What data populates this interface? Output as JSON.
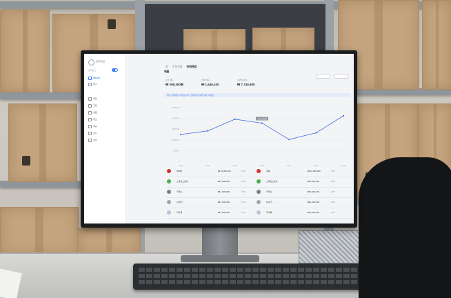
{
  "app": {
    "brand": "관리자모드",
    "mode_label": "관리모드",
    "nav": [
      {
        "label": "대시보드",
        "icon": "dashboard-icon",
        "active": true
      },
      {
        "label": "매출",
        "icon": "sales-icon",
        "active": false
      },
      {
        "label": "회원",
        "icon": "member-icon",
        "active": false
      },
      {
        "label": "주문",
        "icon": "order-icon",
        "active": false
      },
      {
        "label": "상품",
        "icon": "product-icon",
        "active": false
      },
      {
        "label": "재고",
        "icon": "stock-icon",
        "active": false
      },
      {
        "label": "배송",
        "icon": "delivery-icon",
        "active": false
      },
      {
        "label": "정산",
        "icon": "settle-icon",
        "active": false
      },
      {
        "label": "설정",
        "icon": "settings-icon",
        "active": false
      }
    ]
  },
  "header": {
    "tabs": [
      {
        "label": "홈",
        "active": false
      },
      {
        "label": "주문현황",
        "active": false
      },
      {
        "label": "판매현황",
        "active": true
      }
    ]
  },
  "section": {
    "title": "매출"
  },
  "kpis": [
    {
      "label": "오늘 매출",
      "value": "₩ 298,300원"
    },
    {
      "label": "어제 매출",
      "value": "₩ 1,546,100"
    },
    {
      "label": "이번달 매출",
      "value": "₩ 7,740,900"
    }
  ],
  "banner": "최근 7일 매출 추이입니다. 전체 매출현황을 확인하세요.",
  "chart_data": {
    "type": "line",
    "x": [
      "03.13",
      "03.14",
      "03.15",
      "03.16",
      "03.17",
      "03.18",
      "03.19"
    ],
    "values": [
      1250000,
      1420000,
      1960000,
      1780000,
      1020000,
      1330000,
      2120000
    ],
    "ylim": [
      0,
      2500000
    ],
    "yticks": [
      "2,500,000",
      "2,000,000",
      "1,500,000",
      "1,000,000",
      "500,000",
      "0"
    ],
    "highlight_label": "1,960,000원",
    "color": "#4a6fe0"
  },
  "table": [
    {
      "name": "네이버",
      "amount": "₩ 10,000,000",
      "pct": "42%",
      "color": "#d9302c",
      "name2": "쿠팡",
      "amount2": "₩ 10,000,000",
      "pct2": "42%",
      "color2": "#d9302c"
    },
    {
      "name": "스마트스토어",
      "amount": "₩ 4,000,000",
      "pct": "20%",
      "color": "#46b24a",
      "name2": "스마트스토어",
      "amount2": "₩ 4,000,000",
      "pct2": "20%",
      "color2": "#46b24a"
    },
    {
      "name": "카카오",
      "amount": "₩ 4,000,000",
      "pct": "20%",
      "color": "#7a8088",
      "name2": "카카오",
      "amount2": "₩ 4,000,000",
      "pct2": "20%",
      "color2": "#7a8088"
    },
    {
      "name": "11번가",
      "amount": "₩ 4,000,000",
      "pct": "14%",
      "color": "#a0a6ad",
      "name2": "11번가",
      "amount2": "₩ 4,000,000",
      "pct2": "14%",
      "color2": "#a0a6ad"
    },
    {
      "name": "자사몰",
      "amount": "₩ 2,000,000",
      "pct": "10%",
      "color": "#b9c4d6",
      "name2": "자사몰",
      "amount2": "₩ 2,000,000",
      "pct2": "10%",
      "color2": "#b9c4d6"
    }
  ]
}
